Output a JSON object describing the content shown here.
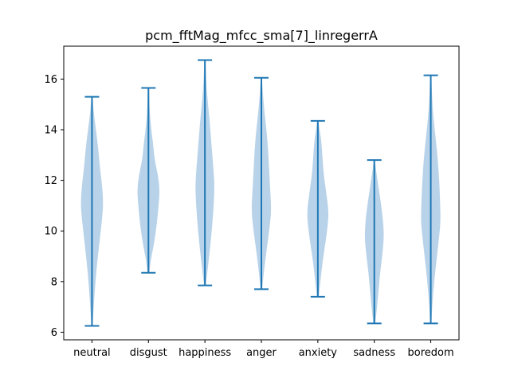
{
  "chart_data": {
    "type": "violin",
    "title": "pcm_fftMag_mfcc_sma[7]_linregerrA",
    "xlabel": "",
    "ylabel": "",
    "categories": [
      "neutral",
      "disgust",
      "happiness",
      "anger",
      "anxiety",
      "sadness",
      "boredom"
    ],
    "y_ticks": [
      6,
      8,
      10,
      12,
      14,
      16
    ],
    "ylim": [
      5.7,
      17.3
    ],
    "grid": false,
    "colors": {
      "body": "#a6c8e3",
      "line": "#1f77b4"
    },
    "series": [
      {
        "category": "neutral",
        "min": 6.25,
        "max": 15.3,
        "profile": [
          [
            6.25,
            0.02
          ],
          [
            6.8,
            0.05
          ],
          [
            7.5,
            0.09
          ],
          [
            8.5,
            0.16
          ],
          [
            9.5,
            0.26
          ],
          [
            10.5,
            0.36
          ],
          [
            11.1,
            0.4
          ],
          [
            11.8,
            0.36
          ],
          [
            12.5,
            0.28
          ],
          [
            13.3,
            0.22
          ],
          [
            14.0,
            0.14
          ],
          [
            14.7,
            0.06
          ],
          [
            15.3,
            0.02
          ]
        ]
      },
      {
        "category": "disgust",
        "min": 8.35,
        "max": 15.65,
        "profile": [
          [
            8.35,
            0.03
          ],
          [
            8.9,
            0.09
          ],
          [
            9.5,
            0.2
          ],
          [
            10.3,
            0.3
          ],
          [
            11.0,
            0.36
          ],
          [
            11.6,
            0.4
          ],
          [
            12.2,
            0.34
          ],
          [
            12.8,
            0.22
          ],
          [
            13.5,
            0.16
          ],
          [
            14.1,
            0.09
          ],
          [
            14.8,
            0.04
          ],
          [
            15.65,
            0.02
          ]
        ]
      },
      {
        "category": "happiness",
        "min": 7.85,
        "max": 16.75,
        "profile": [
          [
            7.85,
            0.03
          ],
          [
            8.5,
            0.1
          ],
          [
            9.5,
            0.2
          ],
          [
            10.5,
            0.28
          ],
          [
            11.2,
            0.32
          ],
          [
            11.8,
            0.34
          ],
          [
            12.5,
            0.3
          ],
          [
            13.3,
            0.24
          ],
          [
            14.2,
            0.18
          ],
          [
            15.0,
            0.11
          ],
          [
            15.8,
            0.05
          ],
          [
            16.75,
            0.02
          ]
        ]
      },
      {
        "category": "anger",
        "min": 7.7,
        "max": 16.05,
        "profile": [
          [
            7.7,
            0.03
          ],
          [
            8.3,
            0.08
          ],
          [
            9.2,
            0.18
          ],
          [
            10.2,
            0.3
          ],
          [
            10.8,
            0.35
          ],
          [
            11.5,
            0.32
          ],
          [
            12.3,
            0.28
          ],
          [
            13.2,
            0.24
          ],
          [
            14.0,
            0.18
          ],
          [
            14.8,
            0.1
          ],
          [
            15.5,
            0.05
          ],
          [
            16.05,
            0.02
          ]
        ]
      },
      {
        "category": "anxiety",
        "min": 7.4,
        "max": 14.35,
        "profile": [
          [
            7.4,
            0.03
          ],
          [
            8.0,
            0.09
          ],
          [
            8.8,
            0.17
          ],
          [
            9.6,
            0.28
          ],
          [
            10.3,
            0.36
          ],
          [
            10.8,
            0.38
          ],
          [
            11.5,
            0.3
          ],
          [
            12.3,
            0.2
          ],
          [
            13.0,
            0.16
          ],
          [
            13.6,
            0.12
          ],
          [
            14.0,
            0.06
          ],
          [
            14.35,
            0.02
          ]
        ]
      },
      {
        "category": "sadness",
        "min": 6.35,
        "max": 12.8,
        "profile": [
          [
            6.35,
            0.03
          ],
          [
            6.8,
            0.08
          ],
          [
            7.5,
            0.14
          ],
          [
            8.3,
            0.2
          ],
          [
            9.0,
            0.28
          ],
          [
            9.7,
            0.34
          ],
          [
            10.3,
            0.32
          ],
          [
            10.9,
            0.26
          ],
          [
            11.5,
            0.18
          ],
          [
            12.1,
            0.1
          ],
          [
            12.5,
            0.05
          ],
          [
            12.8,
            0.02
          ]
        ]
      },
      {
        "category": "boredom",
        "min": 6.35,
        "max": 16.15,
        "profile": [
          [
            6.35,
            0.02
          ],
          [
            7.0,
            0.05
          ],
          [
            8.0,
            0.12
          ],
          [
            9.0,
            0.22
          ],
          [
            9.8,
            0.3
          ],
          [
            10.4,
            0.35
          ],
          [
            11.2,
            0.33
          ],
          [
            12.0,
            0.3
          ],
          [
            12.8,
            0.25
          ],
          [
            13.6,
            0.18
          ],
          [
            14.4,
            0.1
          ],
          [
            15.2,
            0.05
          ],
          [
            16.15,
            0.02
          ]
        ]
      }
    ]
  }
}
